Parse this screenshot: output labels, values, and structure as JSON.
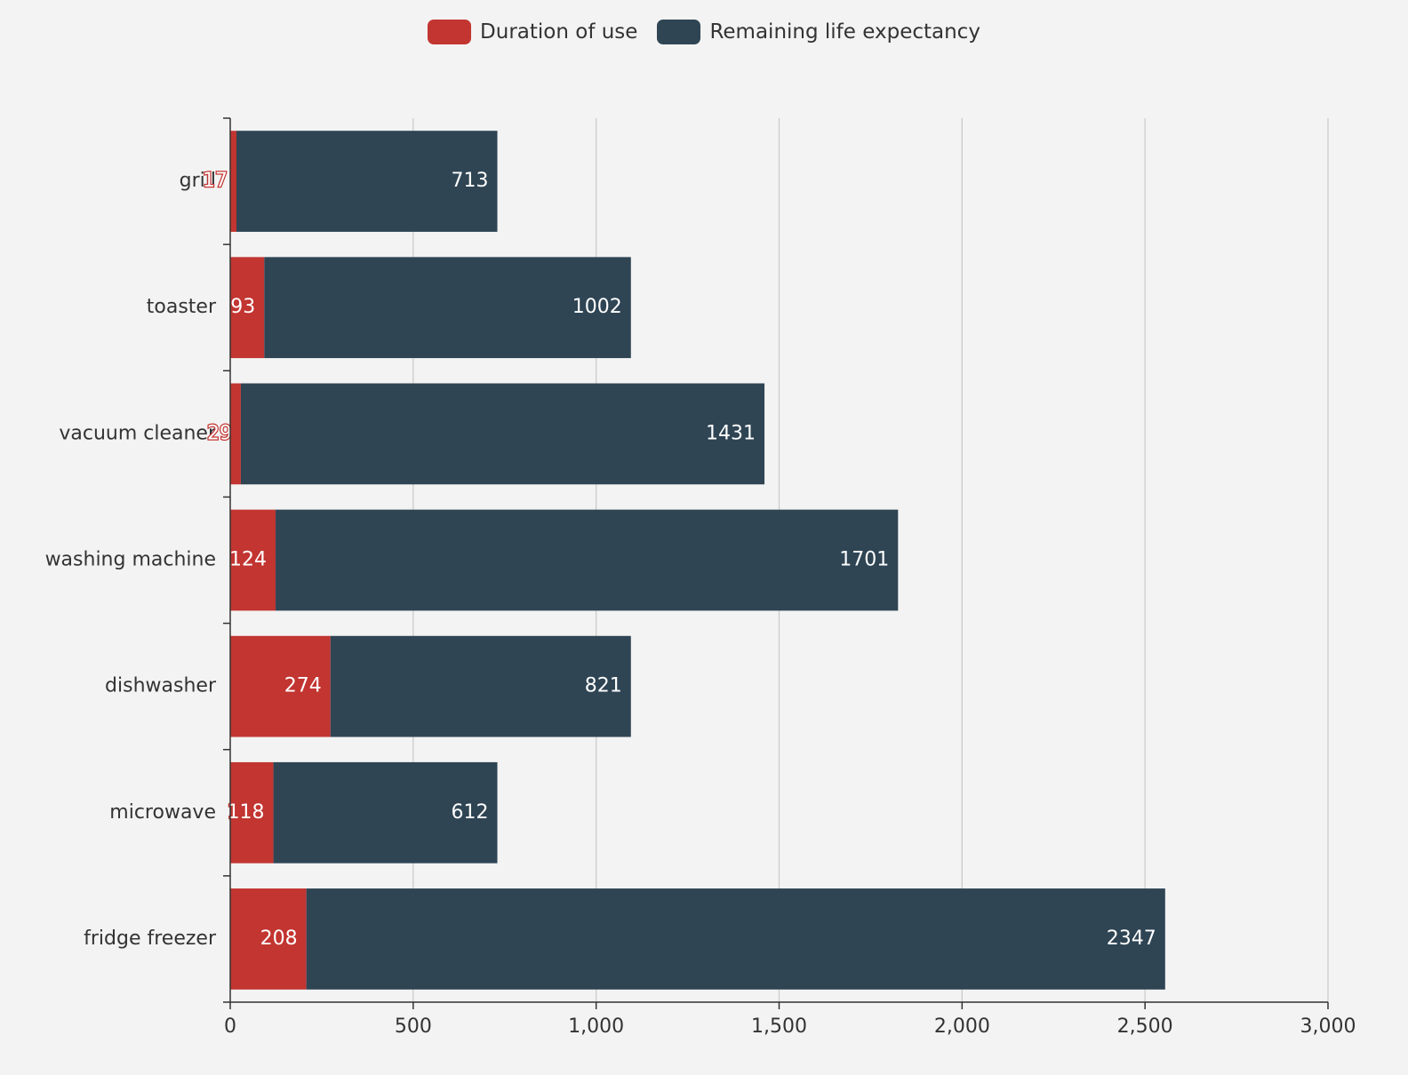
{
  "chart_data": {
    "type": "bar",
    "orientation": "horizontal",
    "stacked": true,
    "categories": [
      "grill",
      "toaster",
      "vacuum cleaner",
      "washing machine",
      "dishwasher",
      "microwave",
      "fridge freezer"
    ],
    "series": [
      {
        "name": "Duration of use",
        "color": "#c23531",
        "values": [
          17,
          93,
          29,
          124,
          274,
          118,
          208
        ],
        "labels": [
          "17",
          "93",
          "29",
          "124",
          "274",
          "118",
          "208"
        ]
      },
      {
        "name": "Remaining life expectancy",
        "color": "#2f4554",
        "values": [
          713,
          1002,
          1431,
          1701,
          821,
          612,
          2347
        ],
        "labels": [
          "713",
          "1002",
          "1431",
          "1701",
          "821",
          "612",
          "2347"
        ]
      }
    ],
    "xlim": [
      0,
      3000
    ],
    "xticks": [
      0,
      500,
      1000,
      1500,
      2000,
      2500,
      3000
    ],
    "xtick_labels": [
      "0",
      "500",
      "1,000",
      "1,500",
      "2,000",
      "2,500",
      "3,000"
    ],
    "grid": "vertical",
    "legend_position": "top-center",
    "title": "",
    "xlabel": "",
    "ylabel": ""
  }
}
